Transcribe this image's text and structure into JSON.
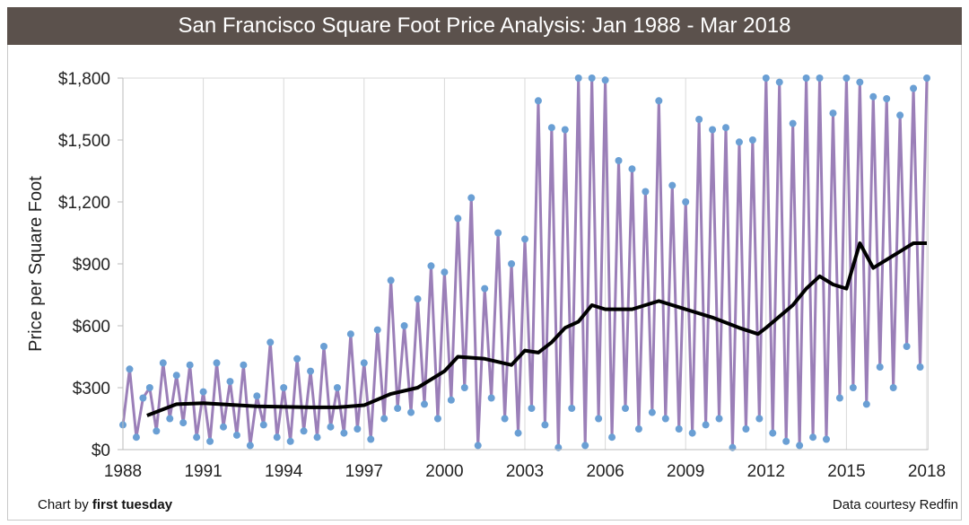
{
  "chart_data": {
    "type": "line",
    "title": "San Francisco Square Foot Price Analysis: Jan 1988 - Mar 2018",
    "xlabel": "",
    "ylabel": "Price per Square Foot",
    "xlim": [
      1988,
      2018.25
    ],
    "ylim": [
      0,
      1800
    ],
    "x_ticks": [
      "1988",
      "1991",
      "1994",
      "1997",
      "2000",
      "2003",
      "2006",
      "2009",
      "2012",
      "2015",
      "2018"
    ],
    "y_ticks": [
      "$0",
      "$300",
      "$600",
      "$900",
      "$1,200",
      "$1,500",
      "$1,800"
    ],
    "grid": "vertical",
    "legend": "none",
    "colors": {
      "raw_line": "#9b7fb8",
      "raw_marker": "#6a9fd4",
      "trend": "#000000",
      "title_bar": "#5b514c"
    },
    "series": [
      {
        "kind": "raw",
        "x_start": 1988,
        "x_step": 0.25,
        "values": [
          120,
          390,
          60,
          250,
          300,
          90,
          420,
          150,
          360,
          130,
          410,
          60,
          280,
          40,
          420,
          110,
          330,
          70,
          410,
          20,
          260,
          120,
          520,
          60,
          300,
          40,
          440,
          90,
          380,
          60,
          500,
          110,
          300,
          80,
          560,
          100,
          420,
          50,
          580,
          150,
          820,
          200,
          600,
          180,
          730,
          220,
          890,
          150,
          860,
          240,
          1120,
          300,
          1220,
          20,
          780,
          250,
          1050,
          150,
          900,
          80,
          1020,
          200,
          1690,
          120,
          1560,
          10,
          1550,
          200,
          1800,
          20,
          1800,
          150,
          1790,
          60,
          1400,
          200,
          1360,
          100,
          1250,
          180,
          1690,
          150,
          1280,
          100,
          1200,
          80,
          1600,
          120,
          1550,
          150,
          1560,
          10,
          1490,
          100,
          1500,
          150,
          1800,
          80,
          1780,
          40,
          1580,
          20,
          1800,
          60,
          1800,
          50,
          1630,
          250,
          1800,
          300,
          1780,
          220,
          1710,
          400,
          1700,
          300,
          1620,
          500,
          1750,
          400,
          1800
        ]
      },
      {
        "kind": "trend",
        "x": [
          1988.9,
          1990,
          1991,
          1993,
          1995,
          1996,
          1997,
          1998,
          1999,
          2000,
          2000.5,
          2001.5,
          2002.5,
          2003,
          2003.5,
          2004,
          2004.5,
          2005,
          2005.5,
          2006,
          2007,
          2008,
          2009,
          2010,
          2011,
          2011.7,
          2012,
          2013,
          2013.5,
          2014,
          2014.5,
          2015,
          2015.5,
          2016,
          2017,
          2017.5,
          2018
        ],
        "y": [
          165,
          220,
          225,
          210,
          205,
          205,
          215,
          270,
          300,
          380,
          450,
          440,
          410,
          480,
          470,
          520,
          590,
          620,
          700,
          680,
          680,
          720,
          680,
          640,
          590,
          560,
          590,
          700,
          780,
          840,
          800,
          780,
          1000,
          880,
          960,
          1000,
          1000
        ]
      }
    ]
  },
  "footer": {
    "credit_prefix": "Chart by ",
    "credit_brand": "first tuesday",
    "source": "Data courtesy Redfin"
  }
}
